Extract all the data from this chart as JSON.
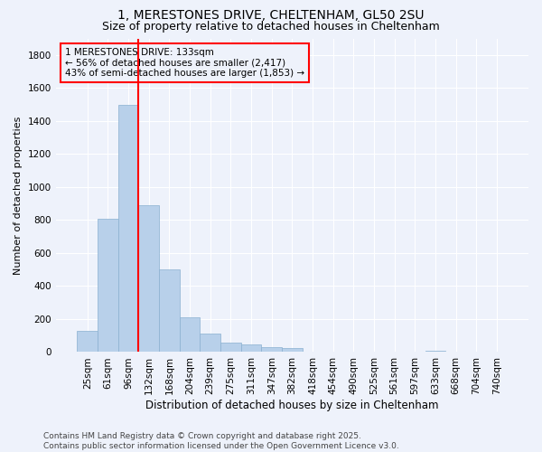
{
  "title_line1": "1, MERESTONES DRIVE, CHELTENHAM, GL50 2SU",
  "title_line2": "Size of property relative to detached houses in Cheltenham",
  "xlabel": "Distribution of detached houses by size in Cheltenham",
  "ylabel": "Number of detached properties",
  "categories": [
    "25sqm",
    "61sqm",
    "96sqm",
    "132sqm",
    "168sqm",
    "204sqm",
    "239sqm",
    "275sqm",
    "311sqm",
    "347sqm",
    "382sqm",
    "418sqm",
    "454sqm",
    "490sqm",
    "525sqm",
    "561sqm",
    "597sqm",
    "633sqm",
    "668sqm",
    "704sqm",
    "740sqm"
  ],
  "bar_values": [
    130,
    810,
    1500,
    890,
    500,
    210,
    110,
    60,
    45,
    30,
    25,
    0,
    0,
    0,
    0,
    0,
    0,
    10,
    0,
    0,
    0
  ],
  "bar_color": "#b8d0ea",
  "bar_edge_color": "#8ab0d0",
  "bar_linewidth": 0.5,
  "vline_x_index": 2.5,
  "vline_color": "red",
  "vline_linewidth": 1.5,
  "annotation_box_text": "1 MERESTONES DRIVE: 133sqm\n← 56% of detached houses are smaller (2,417)\n43% of semi-detached houses are larger (1,853) →",
  "box_edge_color": "red",
  "ylim": [
    0,
    1900
  ],
  "yticks": [
    0,
    200,
    400,
    600,
    800,
    1000,
    1200,
    1400,
    1600,
    1800
  ],
  "background_color": "#eef2fb",
  "grid_color": "#ffffff",
  "footer_text": "Contains HM Land Registry data © Crown copyright and database right 2025.\nContains public sector information licensed under the Open Government Licence v3.0.",
  "title_fontsize": 10,
  "subtitle_fontsize": 9,
  "axis_label_fontsize": 8.5,
  "tick_fontsize": 7.5,
  "annotation_fontsize": 7.5,
  "footer_fontsize": 6.5,
  "ylabel_fontsize": 8
}
